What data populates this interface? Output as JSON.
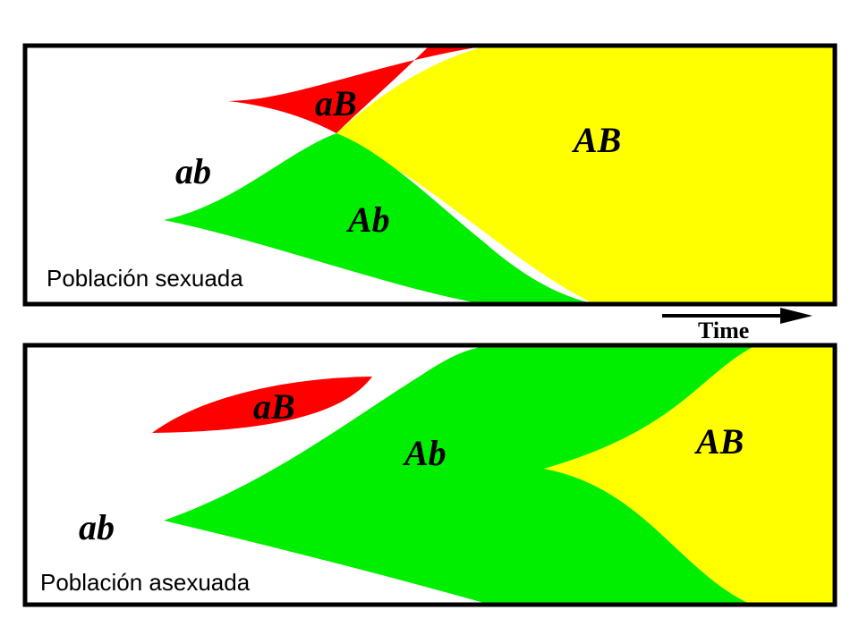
{
  "colors": {
    "aB": "#ff0000",
    "Ab": "#00ee00",
    "AB": "#ffff00",
    "frame": "#000000",
    "background": "#ffffff"
  },
  "sexual_panel": {
    "caption": "Población sexuada",
    "labels": {
      "ab": "ab",
      "aB": "aB",
      "Ab": "Ab",
      "AB": "AB"
    }
  },
  "time_axis": {
    "label": "Time",
    "icon": "right-arrow-icon"
  },
  "asexual_panel": {
    "caption": "Población asexuada",
    "labels": {
      "ab": "ab",
      "aB": "aB",
      "Ab": "Ab",
      "AB": "AB"
    }
  }
}
